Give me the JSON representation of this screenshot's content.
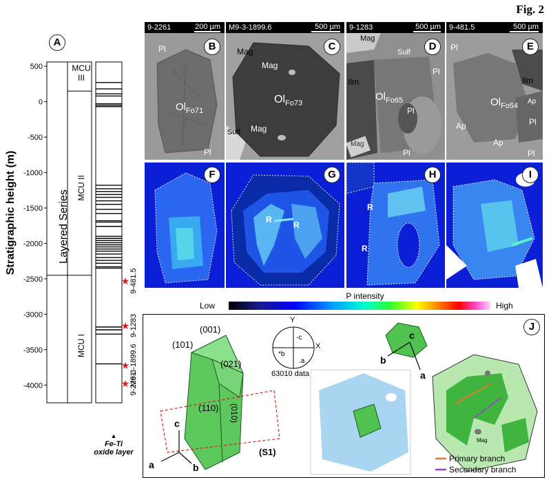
{
  "figure_label": "Fig. 2",
  "panel_a": {
    "letter": "A",
    "ylabel": "Stratigraphic height (m)",
    "ticks": [
      500,
      0,
      -500,
      -1000,
      -1500,
      -2000,
      -2500,
      -3000,
      -3500,
      -4000
    ],
    "tick_labels": [
      "500",
      "0",
      "-500",
      "-1000",
      "-1500",
      "-2000",
      "-2500",
      "-3000",
      "-3500",
      "-4000"
    ],
    "series_label": "Layered Series",
    "units": [
      {
        "name": "MCU III",
        "line1": "MCU",
        "line2": "III",
        "top": 560,
        "bottom": 150
      },
      {
        "name": "MCU II",
        "top": 150,
        "bottom": -2450
      },
      {
        "name": "MCU I",
        "top": -2450,
        "bottom": -4250
      }
    ],
    "oxide_layers": [
      270,
      180,
      110,
      80,
      -30,
      -50,
      -70,
      -1180,
      -1230,
      -1270,
      -1310,
      -1350,
      -1400,
      -1450,
      -1520,
      -1580,
      -1680,
      -1700,
      -1760,
      -1900,
      -1930,
      -1960,
      -1990,
      -2020,
      -2050,
      -2080,
      -2110,
      -2150,
      -2200,
      -2240,
      -2280,
      -2330,
      -2350,
      -3180,
      -3220,
      -3280,
      -3700
    ],
    "samples": [
      {
        "name": "9-481.5",
        "height": -2530
      },
      {
        "name": "9-1283",
        "height": -3160
      },
      {
        "name": "M9-3-1899.6",
        "height": -3720
      },
      {
        "name": "9-2261",
        "height": -3980
      }
    ],
    "column_caption_line1": "Fe-Ti",
    "column_caption_line2": "oxide layer"
  },
  "bse_panels": [
    {
      "letter": "B",
      "sample": "9-2261",
      "scale": "200 µm",
      "labels": [
        {
          "t": "Pl"
        },
        {
          "t": "Ol",
          "sub": "Fo71"
        },
        {
          "t": "Pl"
        }
      ]
    },
    {
      "letter": "C",
      "sample": "M9-3-1899.6",
      "scale": "500 µm",
      "labels": [
        {
          "t": "Mag"
        },
        {
          "t": "Mag"
        },
        {
          "t": "Ol",
          "sub": "Fo73"
        },
        {
          "t": "Mag"
        },
        {
          "t": "Sulf"
        }
      ]
    },
    {
      "letter": "D",
      "sample": "9-1283",
      "scale": "500 µm",
      "labels": [
        {
          "t": "Mag"
        },
        {
          "t": "Sulf"
        },
        {
          "t": "Ilm"
        },
        {
          "t": "Pl"
        },
        {
          "t": "Ol",
          "sub": "Fo65"
        },
        {
          "t": "Pl"
        },
        {
          "t": "Mag"
        },
        {
          "t": "Pl"
        }
      ]
    },
    {
      "letter": "E",
      "sample": "9-481.5",
      "scale": "500 µm",
      "labels": [
        {
          "t": "Pl"
        },
        {
          "t": "Ilm"
        },
        {
          "t": "Ap"
        },
        {
          "t": "Ol",
          "sub": "Fo54"
        },
        {
          "t": "Pl"
        },
        {
          "t": "Ap"
        },
        {
          "t": "Ap"
        },
        {
          "t": "Pl"
        }
      ]
    }
  ],
  "map_panels": [
    {
      "letter": "F"
    },
    {
      "letter": "G",
      "r_labels": [
        "R",
        "R"
      ]
    },
    {
      "letter": "H",
      "r_labels": [
        "R",
        "R"
      ]
    },
    {
      "letter": "I"
    }
  ],
  "colorbar": {
    "title": "P intensity",
    "low": "Low",
    "high": "High"
  },
  "panel_j": {
    "letter": "J",
    "faces": [
      "(001)",
      "(101)",
      "(021)",
      "(110)",
      "(010)"
    ],
    "section_label": "(S1)",
    "axes": [
      "c",
      "a",
      "b"
    ],
    "stereonet": {
      "Y": "Y",
      "X": "X",
      "c": "-c",
      "b": "*b",
      "a": ".a",
      "caption": "63010 data"
    },
    "small_axes": [
      "c",
      "b",
      "a"
    ],
    "mag_label": "Mag",
    "legend": [
      {
        "name": "Primary branch",
        "color": "#e07a2c"
      },
      {
        "name": "Secondary branch",
        "color": "#9b3fd4"
      }
    ]
  }
}
